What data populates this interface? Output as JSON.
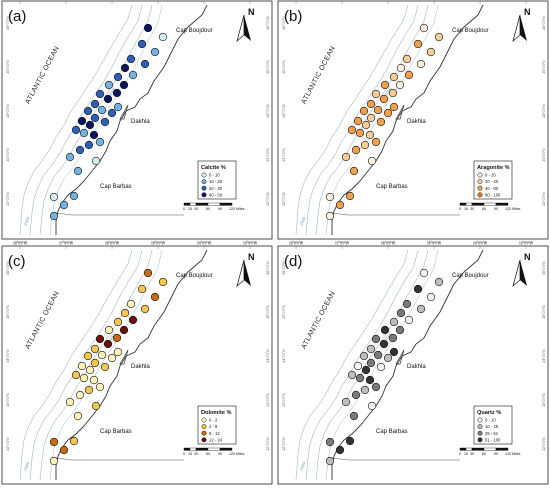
{
  "panels": [
    {
      "id": "a",
      "tag": "(a)",
      "legend_title": "Calcite %",
      "legend_items": [
        {
          "label": "0 - 10",
          "color": "#d7eef7"
        },
        {
          "label": "10 - 20",
          "color": "#74b3e0"
        },
        {
          "label": "20 - 40",
          "color": "#2e5fb5"
        },
        {
          "label": "40 - 50",
          "color": "#0b1560"
        }
      ],
      "samples": [
        3,
        0,
        2,
        1,
        2,
        2,
        3,
        1,
        2,
        3,
        1,
        3,
        2,
        3,
        2,
        1,
        2,
        2,
        3,
        3,
        2,
        1,
        3,
        2,
        2,
        1,
        1,
        2,
        2,
        1,
        0,
        1,
        1,
        1,
        0,
        1
      ]
    },
    {
      "id": "b",
      "tag": "(b)",
      "legend_title": "Aragonite %",
      "legend_items": [
        {
          "label": "0 - 20",
          "color": "#fbefdf"
        },
        {
          "label": "20 - 40",
          "color": "#f7cc96"
        },
        {
          "label": "40 - 80",
          "color": "#f0a04c"
        },
        {
          "label": "80 - 100",
          "color": "#e07a24"
        }
      ],
      "samples": [
        0,
        1,
        2,
        1,
        1,
        0,
        0,
        2,
        1,
        0,
        2,
        1,
        1,
        2,
        2,
        2,
        2,
        1,
        2,
        1,
        2,
        2,
        1,
        2,
        2,
        2,
        2,
        1,
        2,
        1,
        0,
        2,
        2,
        2,
        0,
        0
      ]
    },
    {
      "id": "c",
      "tag": "(c)",
      "legend_title": "Dolomite %",
      "legend_items": [
        {
          "label": "0 - 2",
          "color": "#fdf3b8"
        },
        {
          "label": "2 - 8",
          "color": "#f3c651"
        },
        {
          "label": "8 - 12",
          "color": "#c46a16"
        },
        {
          "label": "12 - 24",
          "color": "#6b1208"
        }
      ],
      "samples": [
        2,
        1,
        1,
        2,
        0,
        1,
        1,
        3,
        1,
        3,
        0,
        2,
        3,
        3,
        1,
        0,
        1,
        1,
        0,
        0,
        1,
        0,
        0,
        1,
        0,
        0,
        0,
        1,
        0,
        0,
        1,
        0,
        1,
        2,
        2,
        0
      ]
    },
    {
      "id": "d",
      "tag": "(d)",
      "legend_title": "Quartz %",
      "legend_items": [
        {
          "label": "0 - 10",
          "color": "#f2f2f2"
        },
        {
          "label": "10 - 25",
          "color": "#bdbdbd"
        },
        {
          "label": "25 - 51",
          "color": "#7a7a7a"
        },
        {
          "label": "51 - 100",
          "color": "#333333"
        }
      ],
      "samples": [
        0,
        1,
        3,
        0,
        2,
        1,
        2,
        0,
        1,
        2,
        3,
        2,
        2,
        3,
        1,
        2,
        1,
        2,
        0,
        3,
        1,
        2,
        3,
        0,
        1,
        3,
        2,
        1,
        2,
        1,
        0,
        2,
        3,
        3,
        2,
        1
      ]
    }
  ],
  "place_labels": {
    "north": "Cap Boujdour",
    "mid": "Dakhla",
    "south": "Cap Barbas"
  },
  "ocean_label": "ATLANTIC OCEAN",
  "north_arrow": "N",
  "contours": [
    "-1000",
    "-500",
    "-2000",
    "-500"
  ],
  "scale_bar": {
    "ticks": [
      "0",
      "15",
      "30",
      "60",
      "90",
      "120"
    ],
    "unit": "Miles"
  },
  "lon_labels": [
    "18°0'0\"W",
    "17°0'0\"W",
    "16°0'0\"W",
    "15°0'0\"W",
    "14°0'0\"W",
    "13°0'0\"W"
  ],
  "lat_labels": [
    "26°0'0\"N",
    "25°0'0\"N",
    "24°0'0\"N",
    "23°0'0\"N",
    "22°0'0\"N"
  ]
}
